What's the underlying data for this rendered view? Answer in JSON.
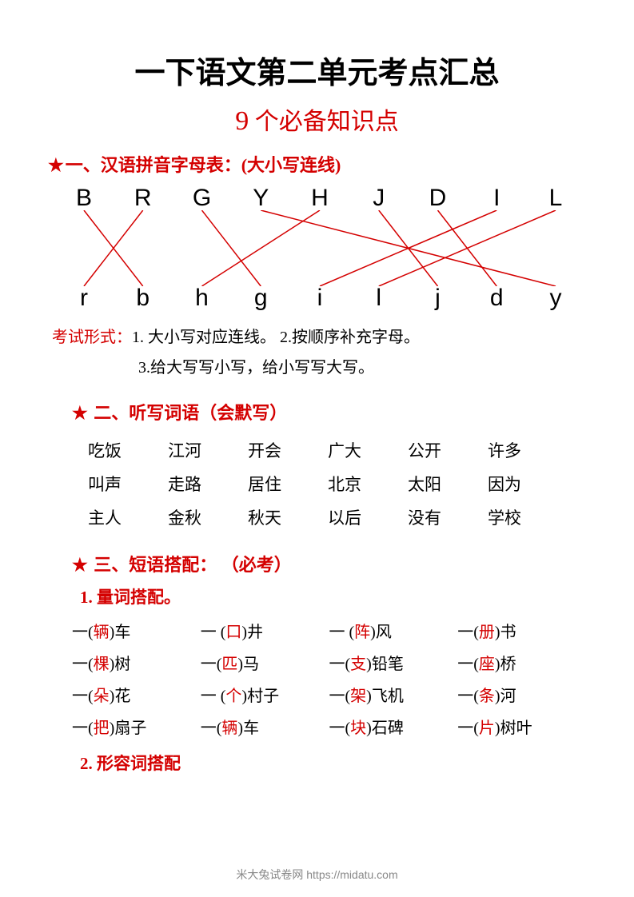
{
  "title": "一下语文第二单元考点汇总",
  "subtitle_num": "9",
  "subtitle_text": " 个必备知识点",
  "section1": {
    "header": "一、汉语拼音字母表：(大小写连线)",
    "upper": [
      "B",
      "R",
      "G",
      "Y",
      "H",
      "J",
      "D",
      "I",
      "L"
    ],
    "lower": [
      "r",
      "b",
      "h",
      "g",
      "i",
      "l",
      "j",
      "d",
      "y"
    ],
    "matches": [
      [
        0,
        1
      ],
      [
        1,
        0
      ],
      [
        2,
        3
      ],
      [
        3,
        8
      ],
      [
        4,
        2
      ],
      [
        5,
        6
      ],
      [
        6,
        7
      ],
      [
        7,
        4
      ],
      [
        8,
        5
      ]
    ],
    "exam_label": "考试形式：",
    "exam_line1": "1. 大小写对应连线。 2.按顺序补充字母。",
    "exam_line2": "3.给大写写小写，给小写写大写。"
  },
  "section2": {
    "header": " 二、听写词语（会默写）",
    "words": [
      [
        "吃饭",
        "江河",
        "开会",
        "广大",
        "公开",
        "许多"
      ],
      [
        "叫声",
        "走路",
        "居住",
        "北京",
        "太阳",
        "因为"
      ],
      [
        "主人",
        "金秋",
        "秋天",
        "以后",
        "没有",
        "学校"
      ]
    ]
  },
  "section3": {
    "header": " 三、短语搭配： （必考）",
    "sub1": "1. 量词搭配。",
    "sub2": "2. 形容词搭配",
    "phrases": [
      [
        {
          "p": "一(",
          "m": "辆",
          "s": ")车"
        },
        {
          "p": "一 (",
          "m": "口",
          "s": ")井"
        },
        {
          "p": "一 (",
          "m": "阵",
          "s": ")风"
        },
        {
          "p": "一(",
          "m": "册",
          "s": ")书"
        }
      ],
      [
        {
          "p": "一(",
          "m": "棵",
          "s": ")树"
        },
        {
          "p": "一(",
          "m": "匹",
          "s": ")马"
        },
        {
          "p": "一(",
          "m": "支",
          "s": ")铅笔"
        },
        {
          "p": "一(",
          "m": "座",
          "s": ")桥"
        }
      ],
      [
        {
          "p": "一(",
          "m": "朵",
          "s": ")花"
        },
        {
          "p": "一 (",
          "m": "个",
          "s": ")村子"
        },
        {
          "p": "一(",
          "m": "架",
          "s": ")飞机"
        },
        {
          "p": "一(",
          "m": "条",
          "s": ")河"
        }
      ],
      [
        {
          "p": "一(",
          "m": "把",
          "s": ")扇子"
        },
        {
          "p": "一(",
          "m": "辆",
          "s": ")车"
        },
        {
          "p": "一(",
          "m": "块",
          "s": ")石碑"
        },
        {
          "p": "一(",
          "m": "片",
          "s": ")树叶"
        }
      ]
    ]
  },
  "footer": "米大兔试卷网 https://midatu.com",
  "colors": {
    "red": "#d40000",
    "black": "#000000",
    "gray": "#888888"
  }
}
